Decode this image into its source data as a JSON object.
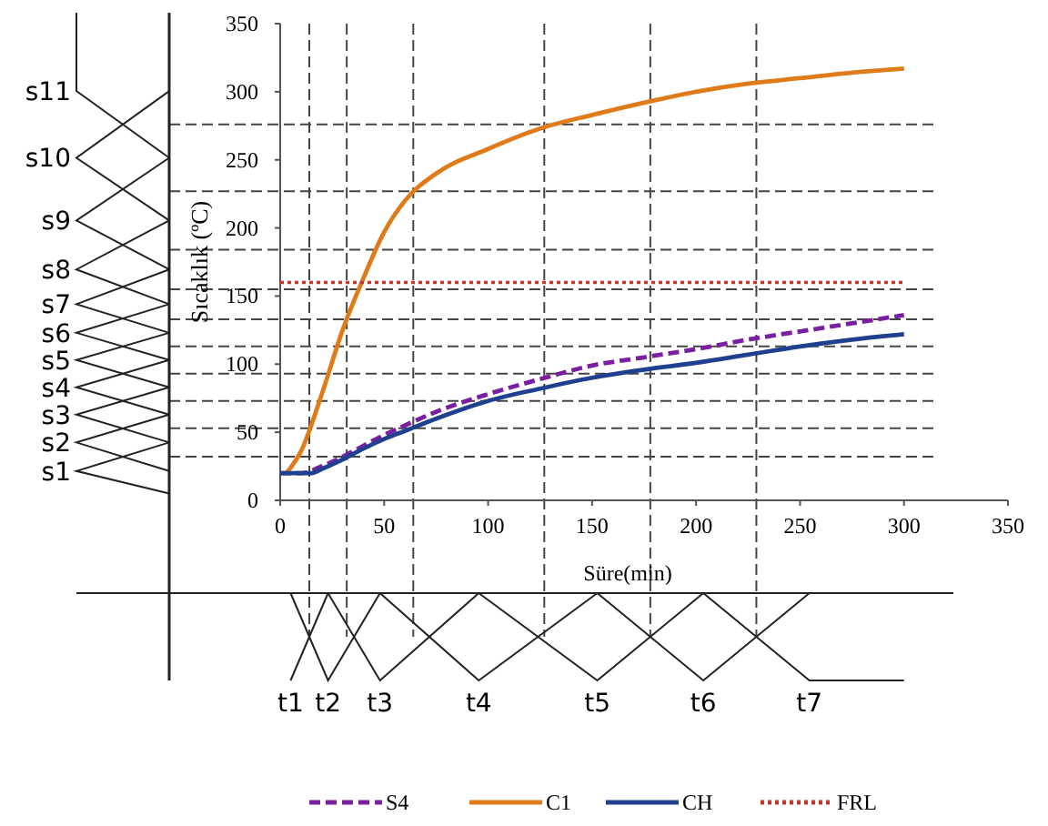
{
  "chart_data": {
    "type": "line",
    "xlabel": "Süre(min)",
    "ylabel": "Sıcaklık (ºC)",
    "xlim": [
      0,
      350
    ],
    "xticks": [
      0,
      50,
      100,
      150,
      200,
      250,
      300,
      350
    ],
    "ylim": [
      0,
      350
    ],
    "yticks": [
      0,
      50,
      100,
      150,
      200,
      250,
      300,
      350
    ],
    "grid": false,
    "legend": "bottom",
    "marker": "none",
    "series": [
      {
        "name": "S4",
        "color": "#7b1fa2",
        "line_style": "dashed",
        "x": [
          0,
          10,
          20,
          30,
          40,
          50,
          60,
          75,
          100,
          125,
          150,
          175,
          200,
          225,
          250,
          275,
          300
        ],
        "values": [
          20,
          20,
          25,
          32,
          40,
          48,
          55,
          65,
          78,
          89,
          99,
          105,
          111,
          118,
          124,
          130,
          136
        ]
      },
      {
        "name": "C1",
        "color": "#e07b1a",
        "line_style": "solid",
        "x": [
          3,
          10,
          20,
          30,
          40,
          50,
          60,
          75,
          100,
          125,
          150,
          175,
          200,
          225,
          250,
          275,
          300
        ],
        "values": [
          20,
          36,
          78,
          125,
          163,
          197,
          220,
          240,
          258,
          273,
          283,
          292,
          300,
          306,
          310,
          314,
          317
        ]
      },
      {
        "name": "CH",
        "color": "#1f3f8f",
        "line_style": "solid",
        "x": [
          0,
          10,
          15,
          20,
          30,
          40,
          50,
          60,
          75,
          100,
          125,
          150,
          175,
          200,
          225,
          250,
          275,
          300
        ],
        "values": [
          20,
          20,
          20,
          23,
          30,
          38,
          45,
          51,
          60,
          73,
          82,
          90,
          96,
          101,
          107,
          113,
          118,
          122
        ]
      },
      {
        "name": "FRL",
        "color": "#c0392b",
        "line_style": "dotted",
        "x": [
          0,
          300
        ],
        "values": [
          160,
          160
        ]
      }
    ],
    "ref_lines": [
      {
        "axis": "y",
        "value": 32,
        "color": "#444444",
        "line_style": "dashed"
      },
      {
        "axis": "y",
        "value": 53,
        "color": "#444444",
        "line_style": "dashed"
      },
      {
        "axis": "y",
        "value": 73,
        "color": "#444444",
        "line_style": "dashed"
      },
      {
        "axis": "y",
        "value": 93,
        "color": "#444444",
        "line_style": "dashed"
      },
      {
        "axis": "y",
        "value": 113,
        "color": "#444444",
        "line_style": "dashed"
      },
      {
        "axis": "y",
        "value": 133,
        "color": "#444444",
        "line_style": "dashed"
      },
      {
        "axis": "y",
        "value": 155,
        "color": "#444444",
        "line_style": "dashed"
      },
      {
        "axis": "y",
        "value": 184,
        "color": "#444444",
        "line_style": "dashed"
      },
      {
        "axis": "y",
        "value": 227,
        "color": "#444444",
        "line_style": "dashed"
      },
      {
        "axis": "y",
        "value": 276,
        "color": "#444444",
        "line_style": "dashed"
      },
      {
        "axis": "x",
        "value": 14,
        "color": "#444444",
        "line_style": "dashed"
      },
      {
        "axis": "x",
        "value": 32,
        "color": "#444444",
        "line_style": "dashed"
      },
      {
        "axis": "x",
        "value": 64,
        "color": "#444444",
        "line_style": "dashed"
      },
      {
        "axis": "x",
        "value": 127,
        "color": "#444444",
        "line_style": "dashed"
      },
      {
        "axis": "x",
        "value": 178,
        "color": "#444444",
        "line_style": "dashed"
      },
      {
        "axis": "x",
        "value": 229,
        "color": "#444444",
        "line_style": "dashed"
      }
    ],
    "annotations": [
      "s1",
      "s2",
      "s3",
      "s4",
      "s5",
      "s6",
      "s7",
      "s8",
      "s9",
      "s10",
      "s11",
      "t1",
      "t2",
      "t3",
      "t4",
      "t5",
      "t6",
      "t7"
    ]
  }
}
